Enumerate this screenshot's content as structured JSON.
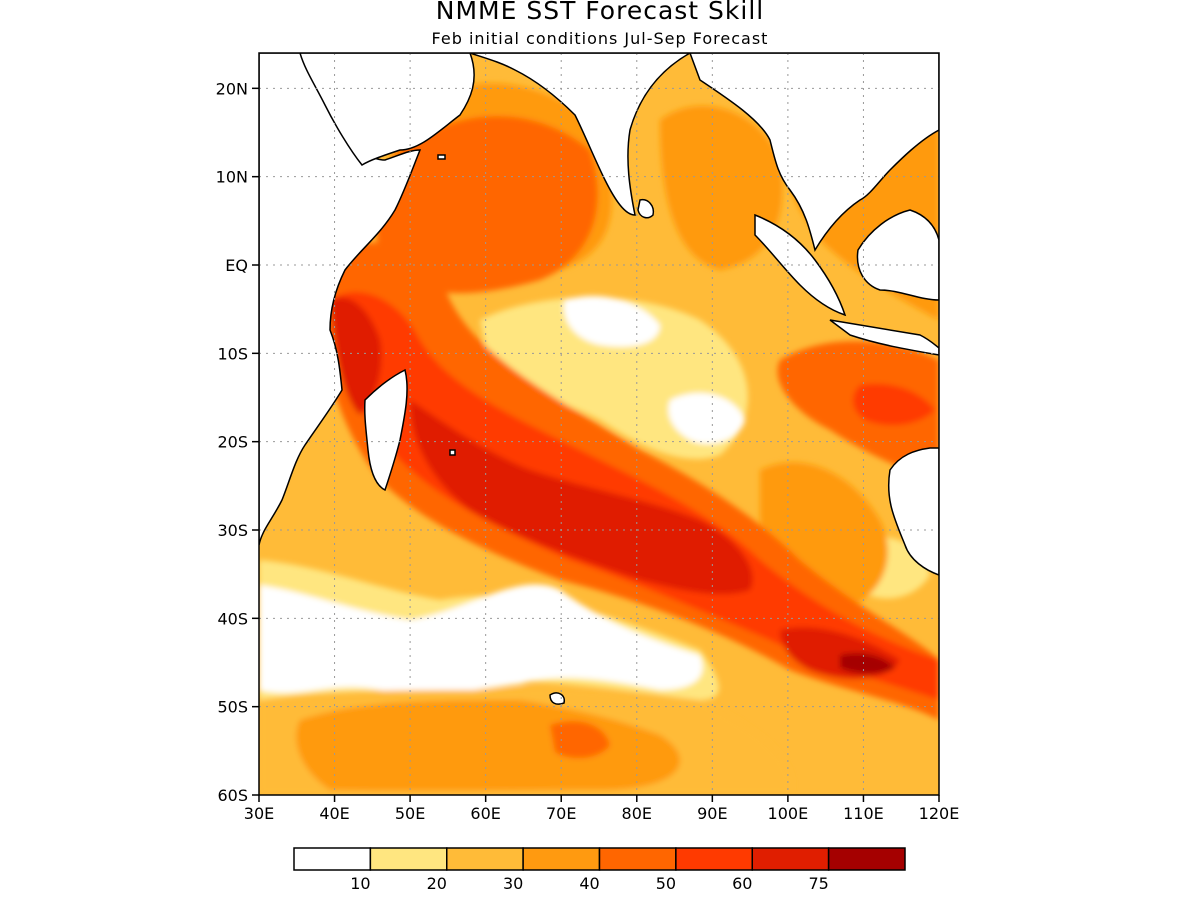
{
  "title": "NMME SST Forecast Skill",
  "subtitle": "Feb initial conditions   Jul-Sep Forecast",
  "map": {
    "region": "Indian Ocean",
    "lon_range": [
      30,
      120
    ],
    "lat_range": [
      -60,
      24
    ],
    "lat_ticks": [
      {
        "value": 20,
        "label": "20N"
      },
      {
        "value": 10,
        "label": "10N"
      },
      {
        "value": 0,
        "label": "EQ"
      },
      {
        "value": -10,
        "label": "10S"
      },
      {
        "value": -20,
        "label": "20S"
      },
      {
        "value": -30,
        "label": "30S"
      },
      {
        "value": -40,
        "label": "40S"
      },
      {
        "value": -50,
        "label": "50S"
      },
      {
        "value": -60,
        "label": "60S"
      }
    ],
    "lon_ticks": [
      {
        "value": 30,
        "label": "30E"
      },
      {
        "value": 40,
        "label": "40E"
      },
      {
        "value": 50,
        "label": "50E"
      },
      {
        "value": 60,
        "label": "60E"
      },
      {
        "value": 70,
        "label": "70E"
      },
      {
        "value": 80,
        "label": "80E"
      },
      {
        "value": 90,
        "label": "90E"
      },
      {
        "value": 100,
        "label": "100E"
      },
      {
        "value": 110,
        "label": "110E"
      },
      {
        "value": 120,
        "label": "120E"
      }
    ],
    "colors": {
      "land": "#ffffff",
      "coast": "#000000",
      "frame": "#000000",
      "grid": "#999999"
    }
  },
  "legend": {
    "colors": [
      "#ffffff",
      "#ffe680",
      "#ffbb38",
      "#ff9a10",
      "#ff6600",
      "#ff3a00",
      "#e01e00",
      "#a50000"
    ],
    "labels": [
      "10",
      "20",
      "30",
      "40",
      "50",
      "60",
      "75"
    ]
  }
}
